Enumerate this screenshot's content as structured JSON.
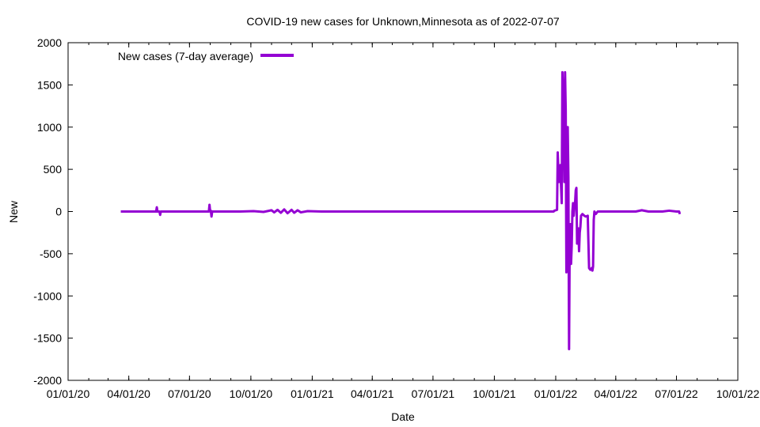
{
  "chart_data": {
    "type": "line",
    "title": "COVID-19 new cases for Unknown,Minnesota as of 2022-07-07",
    "xlabel": "Date",
    "ylabel": "New",
    "xlim": [
      "2020-01-01",
      "2022-10-01"
    ],
    "ylim": [
      -2000,
      2000
    ],
    "x_ticks": [
      {
        "date": "2020-01-01",
        "label": "01/01/20"
      },
      {
        "date": "2020-04-01",
        "label": "04/01/20"
      },
      {
        "date": "2020-07-01",
        "label": "07/01/20"
      },
      {
        "date": "2020-10-01",
        "label": "10/01/20"
      },
      {
        "date": "2021-01-01",
        "label": "01/01/21"
      },
      {
        "date": "2021-04-01",
        "label": "04/01/21"
      },
      {
        "date": "2021-07-01",
        "label": "07/01/21"
      },
      {
        "date": "2021-10-01",
        "label": "10/01/21"
      },
      {
        "date": "2022-01-01",
        "label": "01/01/22"
      },
      {
        "date": "2022-04-01",
        "label": "04/01/22"
      },
      {
        "date": "2022-07-01",
        "label": "07/01/22"
      },
      {
        "date": "2022-10-01",
        "label": "10/01/22"
      }
    ],
    "y_ticks": [
      2000,
      1500,
      1000,
      500,
      0,
      -500,
      -1000,
      -1500,
      -2000
    ],
    "grid": false,
    "legend_position": "top-left",
    "series": [
      {
        "name": "New cases (7-day average)",
        "color": "#9400d3",
        "points": [
          [
            "2020-03-20",
            0
          ],
          [
            "2020-04-10",
            0
          ],
          [
            "2020-04-30",
            0
          ],
          [
            "2020-05-12",
            0
          ],
          [
            "2020-05-13",
            50
          ],
          [
            "2020-05-14",
            0
          ],
          [
            "2020-05-15",
            0
          ],
          [
            "2020-05-17",
            0
          ],
          [
            "2020-05-18",
            -40
          ],
          [
            "2020-05-19",
            0
          ],
          [
            "2020-05-20",
            0
          ],
          [
            "2020-06-10",
            0
          ],
          [
            "2020-07-15",
            0
          ],
          [
            "2020-07-30",
            0
          ],
          [
            "2020-07-31",
            80
          ],
          [
            "2020-08-01",
            0
          ],
          [
            "2020-08-02",
            10
          ],
          [
            "2020-08-03",
            -60
          ],
          [
            "2020-08-04",
            0
          ],
          [
            "2020-09-15",
            0
          ],
          [
            "2020-10-05",
            5
          ],
          [
            "2020-10-20",
            -5
          ],
          [
            "2020-11-01",
            15
          ],
          [
            "2020-11-05",
            -10
          ],
          [
            "2020-11-10",
            20
          ],
          [
            "2020-11-15",
            -15
          ],
          [
            "2020-11-20",
            25
          ],
          [
            "2020-11-25",
            -20
          ],
          [
            "2020-12-01",
            20
          ],
          [
            "2020-12-05",
            -15
          ],
          [
            "2020-12-10",
            15
          ],
          [
            "2020-12-15",
            -10
          ],
          [
            "2020-12-25",
            5
          ],
          [
            "2021-01-15",
            0
          ],
          [
            "2021-04-01",
            0
          ],
          [
            "2021-07-01",
            0
          ],
          [
            "2021-10-01",
            0
          ],
          [
            "2021-12-15",
            0
          ],
          [
            "2021-12-29",
            0
          ],
          [
            "2021-12-30",
            10
          ],
          [
            "2022-01-03",
            20
          ],
          [
            "2022-01-04",
            700
          ],
          [
            "2022-01-05",
            500
          ],
          [
            "2022-01-06",
            350
          ],
          [
            "2022-01-07",
            500
          ],
          [
            "2022-01-08",
            550
          ],
          [
            "2022-01-09",
            300
          ],
          [
            "2022-01-10",
            100
          ],
          [
            "2022-01-11",
            1650
          ],
          [
            "2022-01-12",
            1400
          ],
          [
            "2022-01-13",
            1200
          ],
          [
            "2022-01-14",
            350
          ],
          [
            "2022-01-15",
            1650
          ],
          [
            "2022-01-16",
            1200
          ],
          [
            "2022-01-17",
            -720
          ],
          [
            "2022-01-18",
            -400
          ],
          [
            "2022-01-19",
            1000
          ],
          [
            "2022-01-20",
            400
          ],
          [
            "2022-01-21",
            -1630
          ],
          [
            "2022-01-22",
            -300
          ],
          [
            "2022-01-23",
            -150
          ],
          [
            "2022-01-24",
            -620
          ],
          [
            "2022-01-25",
            -400
          ],
          [
            "2022-01-26",
            0
          ],
          [
            "2022-01-27",
            100
          ],
          [
            "2022-01-28",
            -50
          ],
          [
            "2022-01-29",
            50
          ],
          [
            "2022-01-30",
            100
          ],
          [
            "2022-01-31",
            250
          ],
          [
            "2022-02-01",
            280
          ],
          [
            "2022-02-02",
            -380
          ],
          [
            "2022-02-03",
            -320
          ],
          [
            "2022-02-04",
            -200
          ],
          [
            "2022-02-05",
            -470
          ],
          [
            "2022-02-06",
            -250
          ],
          [
            "2022-02-07",
            -180
          ],
          [
            "2022-02-08",
            -50
          ],
          [
            "2022-02-10",
            -30
          ],
          [
            "2022-02-13",
            -50
          ],
          [
            "2022-02-15",
            -60
          ],
          [
            "2022-02-18",
            -50
          ],
          [
            "2022-02-20",
            -670
          ],
          [
            "2022-02-22",
            -690
          ],
          [
            "2022-02-24",
            -670
          ],
          [
            "2022-02-25",
            -700
          ],
          [
            "2022-02-26",
            -650
          ],
          [
            "2022-02-27",
            -100
          ],
          [
            "2022-02-28",
            0
          ],
          [
            "2022-03-02",
            -30
          ],
          [
            "2022-03-05",
            0
          ],
          [
            "2022-03-15",
            0
          ],
          [
            "2022-04-01",
            0
          ],
          [
            "2022-05-01",
            0
          ],
          [
            "2022-05-10",
            15
          ],
          [
            "2022-05-20",
            0
          ],
          [
            "2022-06-10",
            0
          ],
          [
            "2022-06-20",
            10
          ],
          [
            "2022-07-01",
            0
          ],
          [
            "2022-07-05",
            0
          ],
          [
            "2022-07-06",
            -30
          ]
        ]
      }
    ]
  }
}
